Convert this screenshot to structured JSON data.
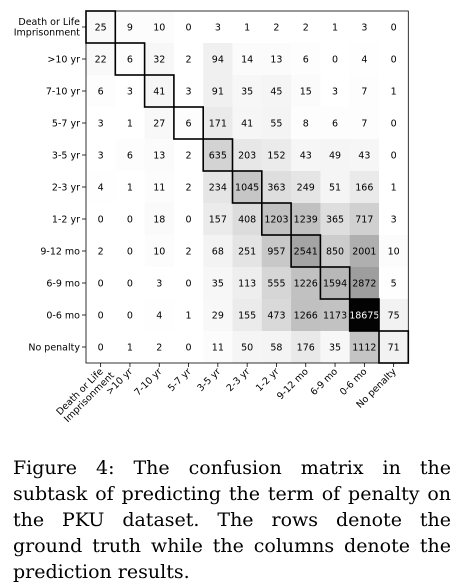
{
  "chart_data": {
    "type": "heatmap",
    "row_labels": [
      "Death or Life Imprisonment",
      ">10 yr",
      "7-10 yr",
      "5-7 yr",
      "3-5 yr",
      "2-3 yr",
      "1-2 yr",
      "9-12 mo",
      "6-9 mo",
      "0-6 mo",
      "No penalty"
    ],
    "column_labels": [
      "Death or Life Imprisonment",
      ">10 yr",
      "7-10 yr",
      "5-7 yr",
      "3-5 yr",
      "2-3 yr",
      "1-2 yr",
      "9-12 mo",
      "6-9 mo",
      "0-6 mo",
      "No penalty"
    ],
    "values": [
      [
        25,
        9,
        10,
        0,
        3,
        1,
        2,
        2,
        1,
        3,
        0
      ],
      [
        22,
        6,
        32,
        2,
        94,
        14,
        13,
        6,
        0,
        4,
        0
      ],
      [
        6,
        3,
        41,
        3,
        91,
        35,
        45,
        15,
        3,
        7,
        1
      ],
      [
        3,
        1,
        27,
        6,
        171,
        41,
        55,
        8,
        6,
        7,
        0
      ],
      [
        3,
        6,
        13,
        2,
        635,
        203,
        152,
        43,
        49,
        43,
        0
      ],
      [
        4,
        1,
        11,
        2,
        234,
        1045,
        363,
        249,
        51,
        166,
        1
      ],
      [
        0,
        0,
        18,
        0,
        157,
        408,
        1203,
        1239,
        365,
        717,
        3
      ],
      [
        2,
        0,
        10,
        2,
        68,
        251,
        957,
        2541,
        850,
        2001,
        10
      ],
      [
        0,
        0,
        3,
        0,
        35,
        113,
        555,
        1226,
        1594,
        2872,
        5
      ],
      [
        0,
        0,
        4,
        1,
        29,
        155,
        473,
        1266,
        1173,
        18675,
        75
      ],
      [
        0,
        1,
        2,
        0,
        11,
        50,
        58,
        176,
        35,
        1112,
        71
      ]
    ],
    "colormap": "Greys",
    "diagonal_highlight": true
  },
  "caption": "Figure 4:  The confusion matrix in the subtask of predicting the term of penalty on the PKU dataset.  The rows denote the ground truth while the columns denote the prediction results."
}
